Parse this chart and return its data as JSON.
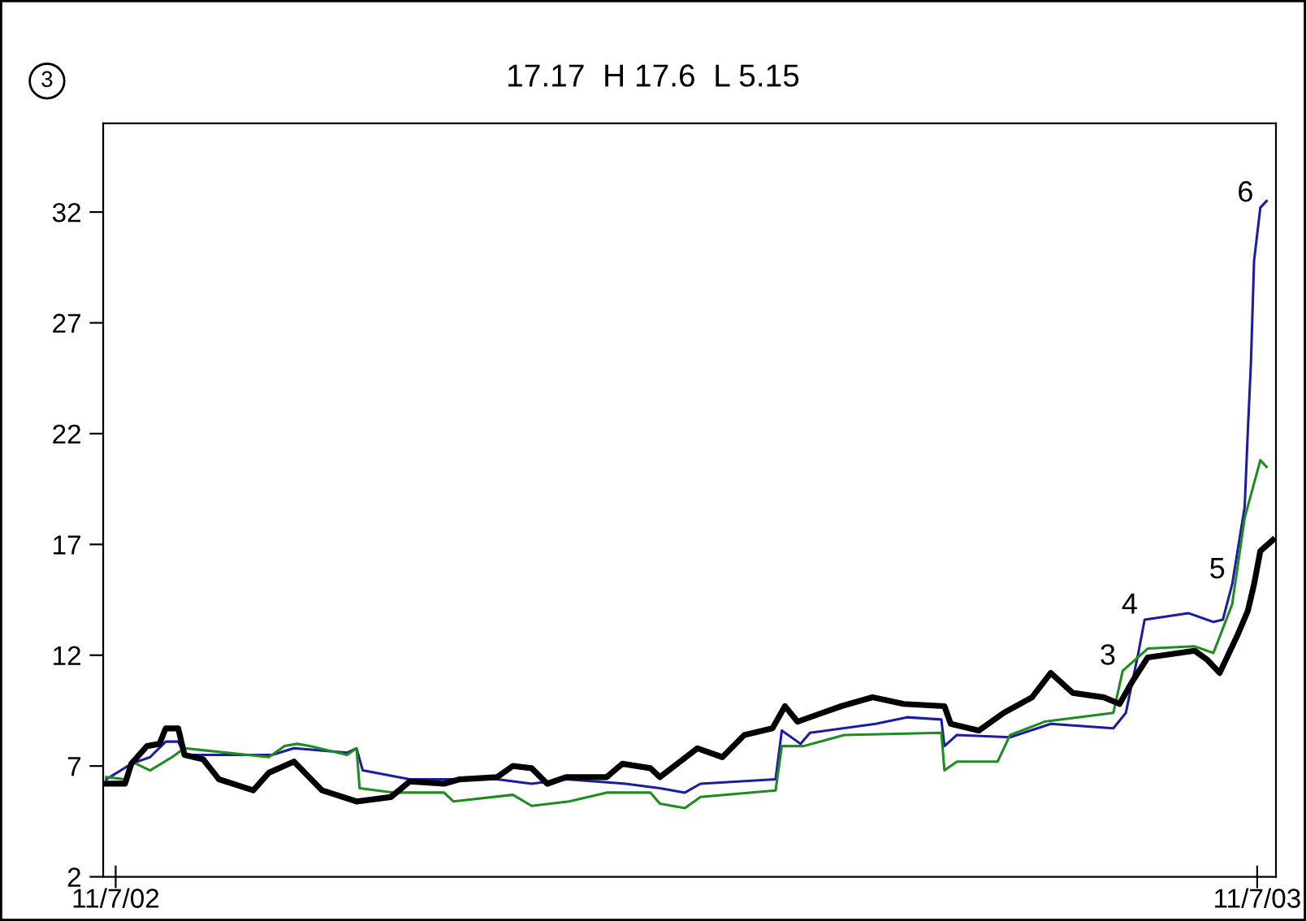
{
  "chart_data": {
    "type": "line",
    "title": "17.17  H 17.6  L 5.15",
    "xlim": [
      "2002-11-03",
      "2003-11-13"
    ],
    "ylim": [
      2,
      36
    ],
    "xticks": [
      {
        "value": "2002-11-07",
        "label": "11/7/02"
      },
      {
        "value": "2003-11-07",
        "label": "11/7/03"
      }
    ],
    "yticks": [
      2,
      7,
      12,
      17,
      22,
      27,
      32
    ],
    "grid": false,
    "legend": false,
    "marker": "none",
    "line_style": "solid",
    "series": [
      {
        "color": "#1c1ca0",
        "x": [
          "2002-11-04",
          "2002-11-12",
          "2002-11-18",
          "2002-11-23",
          "2002-11-27",
          "2002-11-29",
          "2002-12-27",
          "2003-01-03",
          "2003-01-20",
          "2003-01-23",
          "2003-01-25",
          "2003-02-09",
          "2003-03-09",
          "2003-03-20",
          "2003-03-31",
          "2003-04-19",
          "2003-04-30",
          "2003-05-08",
          "2003-05-13",
          "2003-06-06",
          "2003-06-08",
          "2003-06-14",
          "2003-06-17",
          "2003-07-08",
          "2003-07-18",
          "2003-07-29",
          "2003-07-30",
          "2003-08-03",
          "2003-08-20",
          "2003-09-02",
          "2003-09-22",
          "2003-09-26",
          "2003-09-30",
          "2003-10-02",
          "2003-10-16",
          "2003-10-24",
          "2003-10-27",
          "2003-10-30",
          "2003-11-03",
          "2003-11-04",
          "2003-11-05",
          "2003-11-06",
          "2003-11-08",
          "2003-11-10"
        ],
        "values": [
          6.4,
          7.1,
          7.4,
          8.1,
          8.1,
          7.5,
          7.5,
          7.8,
          7.6,
          7.8,
          6.8,
          6.4,
          6.4,
          6.2,
          6.4,
          6.2,
          6.0,
          5.8,
          6.2,
          6.4,
          8.6,
          8.0,
          8.5,
          8.9,
          9.2,
          9.1,
          7.9,
          8.4,
          8.3,
          8.9,
          8.7,
          9.4,
          12.1,
          13.6,
          13.9,
          13.5,
          13.6,
          15.2,
          18.7,
          22.1,
          25.2,
          29.8,
          32.2,
          32.5
        ]
      },
      {
        "color": "#1f8c1f",
        "x": [
          "2002-11-04",
          "2002-11-10",
          "2002-11-12",
          "2002-11-18",
          "2002-11-25",
          "2002-11-29",
          "2002-12-26",
          "2002-12-31",
          "2003-01-04",
          "2003-01-08",
          "2003-01-20",
          "2003-01-23",
          "2003-01-24",
          "2003-02-04",
          "2003-02-20",
          "2003-02-23",
          "2003-03-14",
          "2003-03-20",
          "2003-04-01",
          "2003-04-13",
          "2003-04-27",
          "2003-04-30",
          "2003-05-08",
          "2003-05-13",
          "2003-06-06",
          "2003-06-08",
          "2003-06-15",
          "2003-06-28",
          "2003-07-29",
          "2003-07-30",
          "2003-08-03",
          "2003-08-16",
          "2003-08-20",
          "2003-08-31",
          "2003-09-22",
          "2003-09-25",
          "2003-10-03",
          "2003-10-18",
          "2003-10-24",
          "2003-10-30",
          "2003-11-03",
          "2003-11-08",
          "2003-11-10"
        ],
        "values": [
          6.5,
          6.4,
          7.2,
          6.8,
          7.4,
          7.8,
          7.4,
          7.9,
          8.0,
          7.9,
          7.5,
          7.8,
          6.0,
          5.8,
          5.8,
          5.4,
          5.7,
          5.2,
          5.4,
          5.8,
          5.8,
          5.3,
          5.1,
          5.6,
          5.9,
          7.9,
          7.9,
          8.4,
          8.5,
          6.8,
          7.2,
          7.2,
          8.4,
          9.0,
          9.4,
          11.3,
          12.3,
          12.4,
          12.1,
          14.3,
          18.2,
          20.8,
          20.5
        ]
      },
      {
        "color": "#000000",
        "x": [
          "2002-11-04",
          "2002-11-10",
          "2002-11-12",
          "2002-11-17",
          "2002-11-21",
          "2002-11-23",
          "2002-11-27",
          "2002-11-29",
          "2002-12-05",
          "2002-12-10",
          "2002-12-21",
          "2002-12-26",
          "2003-01-03",
          "2003-01-12",
          "2003-01-23",
          "2003-02-03",
          "2003-02-09",
          "2003-02-20",
          "2003-02-25",
          "2003-03-09",
          "2003-03-14",
          "2003-03-20",
          "2003-03-25",
          "2003-03-31",
          "2003-04-13",
          "2003-04-18",
          "2003-04-27",
          "2003-04-30",
          "2003-05-12",
          "2003-05-20",
          "2003-05-27",
          "2003-06-05",
          "2003-06-09",
          "2003-06-13",
          "2003-06-27",
          "2003-07-07",
          "2003-07-17",
          "2003-07-30",
          "2003-08-01",
          "2003-08-10",
          "2003-08-18",
          "2003-08-27",
          "2003-09-02",
          "2003-09-09",
          "2003-09-19",
          "2003-09-24",
          "2003-09-28",
          "2003-10-03",
          "2003-10-18",
          "2003-10-22",
          "2003-10-26",
          "2003-11-01",
          "2003-11-04",
          "2003-11-06",
          "2003-11-08",
          "2003-11-12"
        ],
        "values": [
          6.2,
          6.2,
          7.1,
          7.9,
          8.0,
          8.7,
          8.7,
          7.5,
          7.3,
          6.4,
          5.9,
          6.7,
          7.2,
          5.9,
          5.4,
          5.6,
          6.3,
          6.2,
          6.4,
          6.5,
          7.0,
          6.9,
          6.2,
          6.5,
          6.5,
          7.1,
          6.9,
          6.5,
          7.8,
          7.4,
          8.4,
          8.7,
          9.7,
          9.0,
          9.7,
          10.1,
          9.8,
          9.7,
          8.9,
          8.6,
          9.4,
          10.1,
          11.2,
          10.3,
          10.1,
          9.8,
          10.8,
          11.9,
          12.2,
          11.8,
          11.2,
          13.0,
          14.0,
          15.2,
          16.7,
          17.2
        ]
      }
    ],
    "annotations": [
      "3",
      {
        "text": "3",
        "x": "2003-09-25",
        "y": 11.3
      },
      {
        "text": "4",
        "x": "2003-10-02",
        "y": 13.6
      },
      {
        "text": "5",
        "x": "2003-10-30",
        "y": 15.2
      },
      {
        "text": "6",
        "x": "2003-11-08",
        "y": 32.2
      }
    ]
  }
}
